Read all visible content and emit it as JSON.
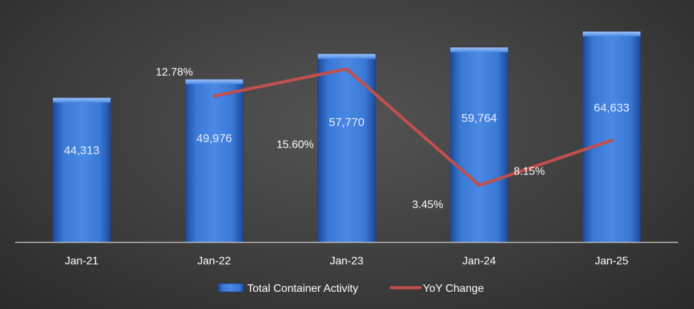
{
  "chart_data": {
    "type": "bar",
    "categories": [
      "Jan-21",
      "Jan-22",
      "Jan-23",
      "Jan-24",
      "Jan-25"
    ],
    "series": [
      {
        "name": "Total Container Activity",
        "type": "bar",
        "values": [
          44313,
          49976,
          57770,
          59764,
          64633
        ],
        "labels": [
          "44,313",
          "49,976",
          "57,770",
          "59,764",
          "64,633"
        ]
      },
      {
        "name": "YoY Change",
        "type": "line",
        "values": [
          null,
          12.78,
          15.6,
          3.45,
          8.15
        ],
        "labels": [
          "",
          "12.78%",
          "15.60%",
          "3.45%",
          "8.15%"
        ]
      }
    ],
    "y_left": {
      "min": 0,
      "max": 68000
    },
    "y_right": {
      "min": 0,
      "max": 18
    },
    "legend_position": "bottom",
    "grid": false,
    "colors": {
      "bar": "#3d78d8",
      "line": "#c0504d"
    }
  }
}
